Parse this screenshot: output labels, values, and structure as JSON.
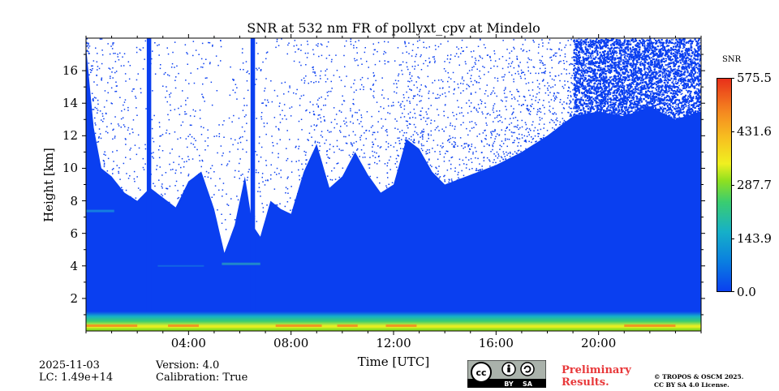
{
  "chart_data": {
    "type": "heatmap",
    "title": "SNR at 532 nm FR of pollyxt_cpv at Mindelo",
    "xlabel": "Time [UTC]",
    "ylabel": "Height [km]",
    "xlim": [
      0,
      24
    ],
    "ylim": [
      0,
      18
    ],
    "x_ticks": [
      "04:00",
      "08:00",
      "12:00",
      "16:00",
      "20:00"
    ],
    "x_tick_values": [
      4,
      8,
      12,
      16,
      20
    ],
    "y_ticks": [
      "2",
      "4",
      "6",
      "8",
      "10",
      "12",
      "14",
      "16"
    ],
    "y_tick_values": [
      2,
      4,
      6,
      8,
      10,
      12,
      14,
      16
    ],
    "colorbar": {
      "label": "SNR",
      "ticks": [
        "0.0",
        "143.9",
        "287.7",
        "431.6",
        "575.5"
      ],
      "tick_values": [
        0.0,
        143.9,
        287.7,
        431.6,
        575.5
      ],
      "range": [
        0.0,
        575.5
      ],
      "colormap": [
        "#0a3ff0",
        "#0a7fe0",
        "#16b0c8",
        "#3acd70",
        "#8fe020",
        "#f0f020",
        "#f7c020",
        "#f58a20",
        "#e8301a"
      ]
    },
    "signal_top_km": [
      {
        "t": 0.0,
        "h": 17.5
      },
      {
        "t": 0.3,
        "h": 12.5
      },
      {
        "t": 0.6,
        "h": 10.0
      },
      {
        "t": 1.0,
        "h": 9.5
      },
      {
        "t": 1.5,
        "h": 8.5
      },
      {
        "t": 2.0,
        "h": 8.0
      },
      {
        "t": 2.5,
        "h": 8.8
      },
      {
        "t": 3.0,
        "h": 8.2
      },
      {
        "t": 3.5,
        "h": 7.6
      },
      {
        "t": 4.0,
        "h": 9.2
      },
      {
        "t": 4.5,
        "h": 9.8
      },
      {
        "t": 5.0,
        "h": 7.5
      },
      {
        "t": 5.4,
        "h": 4.8
      },
      {
        "t": 5.8,
        "h": 6.5
      },
      {
        "t": 6.2,
        "h": 9.5
      },
      {
        "t": 6.5,
        "h": 6.5
      },
      {
        "t": 6.8,
        "h": 5.8
      },
      {
        "t": 7.2,
        "h": 8.0
      },
      {
        "t": 7.6,
        "h": 7.5
      },
      {
        "t": 8.0,
        "h": 7.2
      },
      {
        "t": 8.5,
        "h": 9.8
      },
      {
        "t": 9.0,
        "h": 11.5
      },
      {
        "t": 9.5,
        "h": 8.8
      },
      {
        "t": 10.0,
        "h": 9.5
      },
      {
        "t": 10.5,
        "h": 11.0
      },
      {
        "t": 11.0,
        "h": 9.6
      },
      {
        "t": 11.5,
        "h": 8.5
      },
      {
        "t": 12.0,
        "h": 9.0
      },
      {
        "t": 12.5,
        "h": 11.8
      },
      {
        "t": 13.0,
        "h": 11.2
      },
      {
        "t": 13.5,
        "h": 9.8
      },
      {
        "t": 14.0,
        "h": 9.0
      },
      {
        "t": 15.0,
        "h": 9.6
      },
      {
        "t": 16.0,
        "h": 10.2
      },
      {
        "t": 17.0,
        "h": 11.0
      },
      {
        "t": 18.0,
        "h": 12.0
      },
      {
        "t": 19.0,
        "h": 13.2
      },
      {
        "t": 20.0,
        "h": 13.5
      },
      {
        "t": 21.0,
        "h": 13.2
      },
      {
        "t": 22.0,
        "h": 13.8
      },
      {
        "t": 23.0,
        "h": 13.0
      },
      {
        "t": 24.0,
        "h": 13.5
      }
    ],
    "vertical_columns_hours": [
      2.45,
      6.5
    ],
    "near_surface_high_snr_km": [
      0.0,
      0.5
    ]
  },
  "footer": {
    "date": "2025-11-03",
    "lc": "LC: 1.49e+14",
    "version": "Version: 4.0",
    "calibration": "Calibration: True",
    "preliminary_line1": "Preliminary",
    "preliminary_line2": "Results.",
    "copyright_line1": "© TROPOS & OSCM 2025.",
    "copyright_line2": "CC BY SA 4.0 License.",
    "license_badge": {
      "cc": "cc",
      "by": "BY",
      "sa": "SA"
    }
  },
  "colors": {
    "preliminary": "#e8383a",
    "background": "#ffffff"
  }
}
